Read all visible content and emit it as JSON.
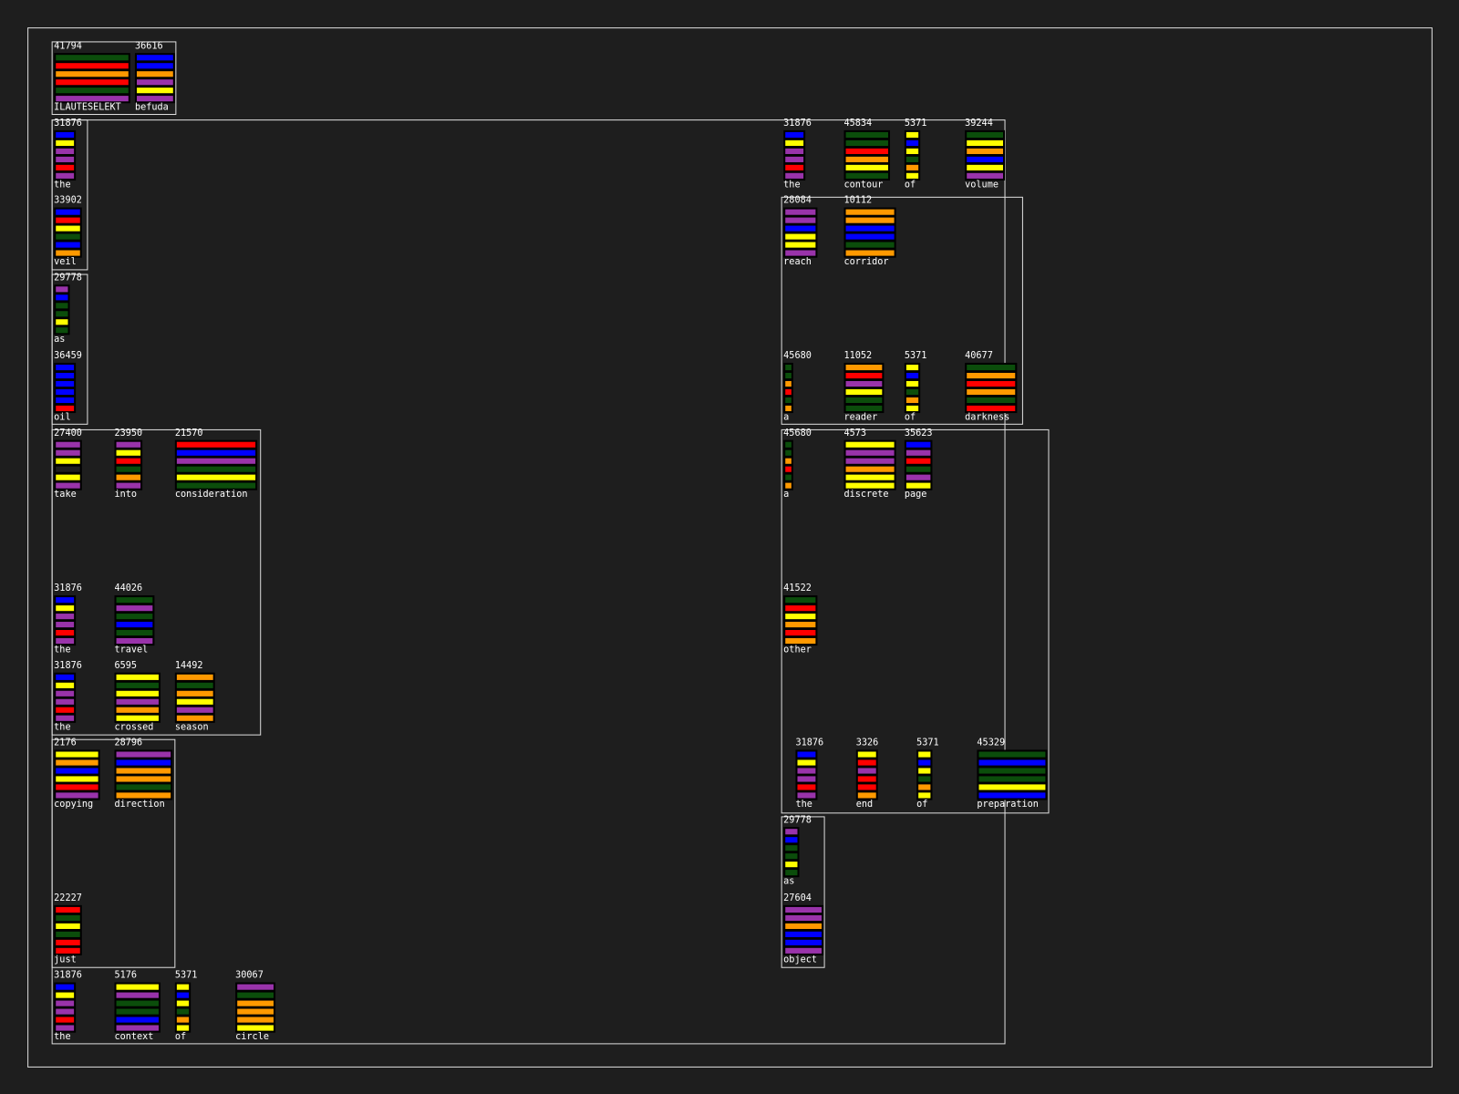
{
  "tokens": [
    {
      "count": 41794,
      "word": "ILAUTESELEKT",
      "stripes": [
        "#0b4d0b",
        "#ff0000",
        "#ff9900",
        "#ff0000",
        "#0b4d0b",
        "#9933aa"
      ]
    },
    {
      "count": 36616,
      "word": "befuda",
      "stripes": [
        "#0000ff",
        "#0000ff",
        "#ff9900",
        "#9933aa",
        "#ffff00",
        "#9933aa"
      ]
    },
    {
      "count": 31876,
      "word": "the",
      "stripes": [
        "#0000ff",
        "#ffff00",
        "#9933aa",
        "#9933aa",
        "#ff0000",
        "#9933aa"
      ]
    },
    {
      "count": 33902,
      "word": "veil",
      "stripes": [
        "#0000ff",
        "#ff0000",
        "#ffff00",
        "#0b4d0b",
        "#0000ff",
        "#ff9900"
      ]
    },
    {
      "count": 29778,
      "word": "as",
      "stripes": [
        "#9933aa",
        "#0000ff",
        "#0b4d0b",
        "#0b4d0b",
        "#ffff00",
        "#0b4d0b"
      ]
    },
    {
      "count": 36459,
      "word": "oil",
      "stripes": [
        "#0000ff",
        "#0000ff",
        "#0000ff",
        "#0000ff",
        "#0000ff",
        "#ff0000"
      ]
    },
    {
      "count": 27400,
      "word": "take",
      "stripes": [
        "#9933aa",
        "#9933aa",
        "#ffff00",
        "#1e1e1e",
        "#ffff00",
        "#9933aa"
      ]
    },
    {
      "count": 23950,
      "word": "into",
      "stripes": [
        "#9933aa",
        "#ffff00",
        "#ff0000",
        "#0b4d0b",
        "#ff9900",
        "#9933aa"
      ]
    },
    {
      "count": 21570,
      "word": "consideration",
      "stripes": [
        "#ff0000",
        "#0000ff",
        "#9933aa",
        "#0b4d0b",
        "#ffff00",
        "#0b4d0b"
      ]
    },
    {
      "count": 31876,
      "word": "the",
      "stripes": [
        "#0000ff",
        "#ffff00",
        "#9933aa",
        "#9933aa",
        "#ff0000",
        "#9933aa"
      ]
    },
    {
      "count": 44026,
      "word": "travel",
      "stripes": [
        "#0b4d0b",
        "#9933aa",
        "#0b4d0b",
        "#0000ff",
        "#0b4d0b",
        "#9933aa"
      ]
    },
    {
      "count": 31876,
      "word": "the",
      "stripes": [
        "#0000ff",
        "#ffff00",
        "#9933aa",
        "#9933aa",
        "#ff0000",
        "#9933aa"
      ]
    },
    {
      "count": 6595,
      "word": "crossed",
      "stripes": [
        "#ffff00",
        "#0b4d0b",
        "#ffff00",
        "#9933aa",
        "#ff9900",
        "#ffff00"
      ]
    },
    {
      "count": 14492,
      "word": "season",
      "stripes": [
        "#ff9900",
        "#0b4d0b",
        "#ff9900",
        "#ffff00",
        "#9933aa",
        "#ff9900"
      ]
    },
    {
      "count": 2176,
      "word": "copying",
      "stripes": [
        "#ffff00",
        "#ff9900",
        "#0000ff",
        "#ffff00",
        "#ff0000",
        "#9933aa"
      ]
    },
    {
      "count": 28796,
      "word": "direction",
      "stripes": [
        "#9933aa",
        "#0000ff",
        "#ff9900",
        "#ff9900",
        "#0b4d0b",
        "#ff9900"
      ]
    },
    {
      "count": 22227,
      "word": "just",
      "stripes": [
        "#ff0000",
        "#0b4d0b",
        "#ffff00",
        "#0b4d0b",
        "#ff0000",
        "#ff0000"
      ]
    },
    {
      "count": 31876,
      "word": "the",
      "stripes": [
        "#0000ff",
        "#ffff00",
        "#9933aa",
        "#9933aa",
        "#ff0000",
        "#9933aa"
      ]
    },
    {
      "count": 5176,
      "word": "context",
      "stripes": [
        "#ffff00",
        "#9933aa",
        "#0b4d0b",
        "#0b4d0b",
        "#0000ff",
        "#9933aa"
      ]
    },
    {
      "count": 5371,
      "word": "of",
      "stripes": [
        "#ffff00",
        "#0000ff",
        "#ffff00",
        "#0b4d0b",
        "#ff9900",
        "#ffff00"
      ]
    },
    {
      "count": 30067,
      "word": "circle",
      "stripes": [
        "#9933aa",
        "#0b4d0b",
        "#ff9900",
        "#ff9900",
        "#ff9900",
        "#ffff00"
      ]
    },
    {
      "count": 31876,
      "word": "the",
      "stripes": [
        "#0000ff",
        "#ffff00",
        "#9933aa",
        "#9933aa",
        "#ff0000",
        "#9933aa"
      ]
    },
    {
      "count": 45834,
      "word": "contour",
      "stripes": [
        "#0b4d0b",
        "#0b4d0b",
        "#ff0000",
        "#ff9900",
        "#ffff00",
        "#0b4d0b"
      ]
    },
    {
      "count": 5371,
      "word": "of",
      "stripes": [
        "#ffff00",
        "#0000ff",
        "#ffff00",
        "#0b4d0b",
        "#ff9900",
        "#ffff00"
      ]
    },
    {
      "count": 39244,
      "word": "volume",
      "stripes": [
        "#0b4d0b",
        "#ffff00",
        "#ff9900",
        "#0000ff",
        "#ffff00",
        "#9933aa"
      ]
    },
    {
      "count": 28084,
      "word": "reach",
      "stripes": [
        "#9933aa",
        "#9933aa",
        "#0000ff",
        "#ffff00",
        "#ffff00",
        "#9933aa"
      ]
    },
    {
      "count": 10112,
      "word": "corridor",
      "stripes": [
        "#ff9900",
        "#ff9900",
        "#0000ff",
        "#0000ff",
        "#0b4d0b",
        "#ff9900"
      ]
    },
    {
      "count": 45680,
      "word": "a",
      "stripes": [
        "#0b4d0b",
        "#0b4d0b",
        "#ff9900",
        "#ff0000",
        "#0b4d0b",
        "#ff9900"
      ]
    },
    {
      "count": 11052,
      "word": "reader",
      "stripes": [
        "#ff9900",
        "#ff0000",
        "#9933aa",
        "#ffff00",
        "#0b4d0b",
        "#0b4d0b"
      ]
    },
    {
      "count": 5371,
      "word": "of",
      "stripes": [
        "#ffff00",
        "#0000ff",
        "#ffff00",
        "#0b4d0b",
        "#ff9900",
        "#ffff00"
      ]
    },
    {
      "count": 40677,
      "word": "darkness",
      "stripes": [
        "#0b4d0b",
        "#ff9900",
        "#ff0000",
        "#ff9900",
        "#0b4d0b",
        "#ff0000"
      ]
    },
    {
      "count": 45680,
      "word": "a",
      "stripes": [
        "#0b4d0b",
        "#0b4d0b",
        "#ff9900",
        "#ff0000",
        "#0b4d0b",
        "#ff9900"
      ]
    },
    {
      "count": 4573,
      "word": "discrete",
      "stripes": [
        "#ffff00",
        "#9933aa",
        "#9933aa",
        "#ff9900",
        "#ffff00",
        "#ffff00"
      ]
    },
    {
      "count": 35623,
      "word": "page",
      "stripes": [
        "#0000ff",
        "#9933aa",
        "#ff0000",
        "#0b4d0b",
        "#9933aa",
        "#ffff00"
      ]
    },
    {
      "count": 41522,
      "word": "other",
      "stripes": [
        "#0b4d0b",
        "#ff0000",
        "#ffff00",
        "#ff9900",
        "#ff0000",
        "#ff9900"
      ]
    },
    {
      "count": 31876,
      "word": "the",
      "stripes": [
        "#0000ff",
        "#ffff00",
        "#9933aa",
        "#9933aa",
        "#ff0000",
        "#9933aa"
      ]
    },
    {
      "count": 3326,
      "word": "end",
      "stripes": [
        "#ffff00",
        "#ff0000",
        "#9933aa",
        "#ff0000",
        "#ff0000",
        "#ff9900"
      ]
    },
    {
      "count": 5371,
      "word": "of",
      "stripes": [
        "#ffff00",
        "#0000ff",
        "#ffff00",
        "#0b4d0b",
        "#ff9900",
        "#ffff00"
      ]
    },
    {
      "count": 45329,
      "word": "preparation",
      "stripes": [
        "#0b4d0b",
        "#0000ff",
        "#0b4d0b",
        "#0b4d0b",
        "#ffff00",
        "#0000ff"
      ]
    },
    {
      "count": 29778,
      "word": "as",
      "stripes": [
        "#9933aa",
        "#0000ff",
        "#0b4d0b",
        "#0b4d0b",
        "#ffff00",
        "#0b4d0b"
      ]
    },
    {
      "count": 27604,
      "word": "object",
      "stripes": [
        "#9933aa",
        "#9933aa",
        "#ff9900",
        "#0000ff",
        "#0000ff",
        "#9933aa"
      ]
    }
  ]
}
